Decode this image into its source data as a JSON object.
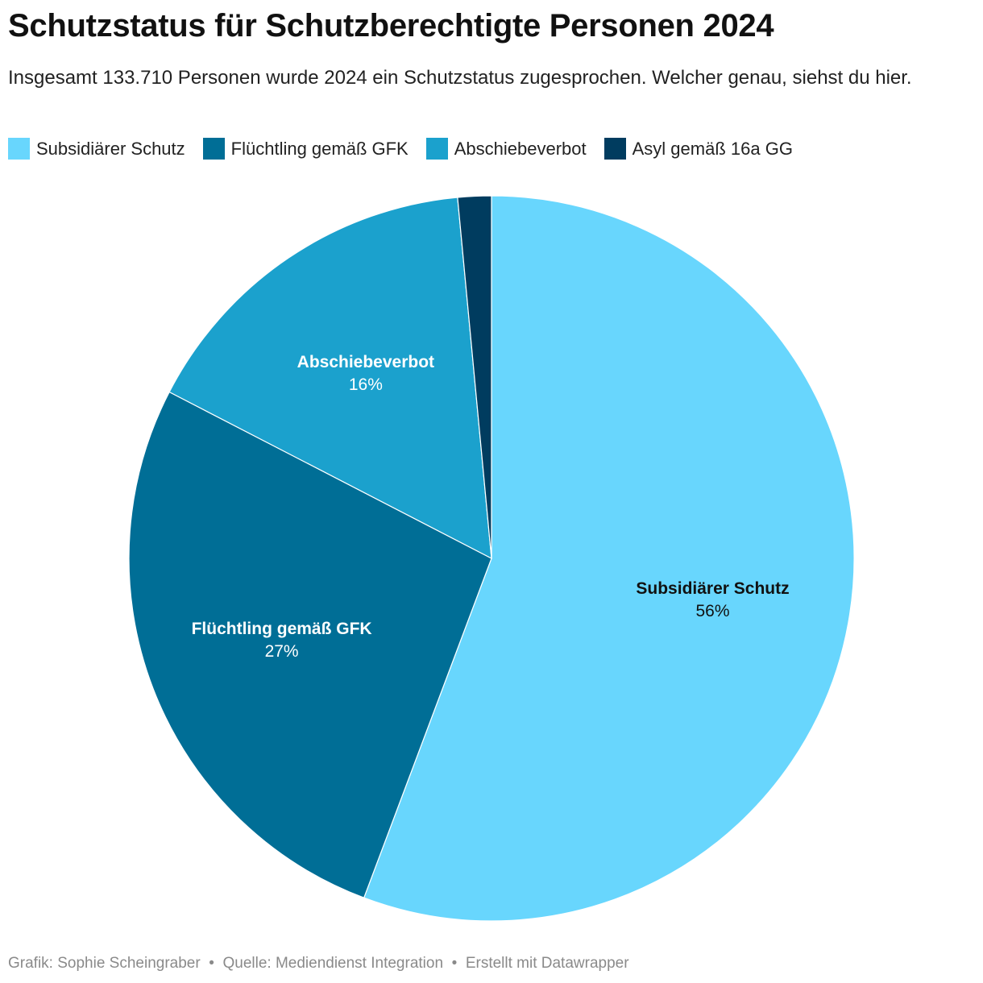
{
  "header": {
    "title": "Schutzstatus für Schutzberechtigte Personen 2024",
    "subtitle": "Insgesamt 133.710 Personen wurde 2024 ein Schutzstatus zugesprochen. Welcher genau, siehst du hier."
  },
  "chart_data": {
    "type": "pie",
    "start": "top",
    "direction": "clockwise",
    "slices": [
      {
        "label": "Subsidiärer Schutz",
        "value": 56,
        "value_label": "56%",
        "color": "#68d6fd",
        "label_color": "#111111",
        "show_label": true
      },
      {
        "label": "Flüchtling gemäß GFK",
        "value": 27,
        "value_label": "27%",
        "color": "#006e96",
        "label_color": "#ffffff",
        "show_label": true
      },
      {
        "label": "Abschiebeverbot",
        "value": 16,
        "value_label": "16%",
        "color": "#1ba1cd",
        "label_color": "#ffffff",
        "show_label": true
      },
      {
        "label": "Asyl gemäß 16a GG",
        "value": 1.5,
        "value_label": "",
        "color": "#003c5f",
        "label_color": "#ffffff",
        "show_label": false
      }
    ],
    "legend_position": "top-left"
  },
  "footer": {
    "credit": "Grafik: Sophie Scheingraber",
    "source": "Quelle: Mediendienst Integration",
    "tool": "Erstellt mit Datawrapper",
    "separator": " • "
  }
}
